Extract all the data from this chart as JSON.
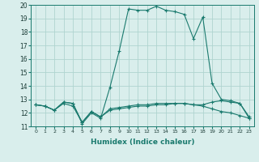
{
  "xlabel": "Humidex (Indice chaleur)",
  "x_values": [
    0,
    1,
    2,
    3,
    4,
    5,
    6,
    7,
    8,
    9,
    10,
    11,
    12,
    13,
    14,
    15,
    16,
    17,
    18,
    19,
    20,
    21,
    22,
    23
  ],
  "line1": [
    12.6,
    12.5,
    12.2,
    12.8,
    12.7,
    11.2,
    12.0,
    11.6,
    13.9,
    16.6,
    19.7,
    19.6,
    19.6,
    19.9,
    19.6,
    19.5,
    19.3,
    17.5,
    19.1,
    14.2,
    13.0,
    12.9,
    12.7,
    11.6
  ],
  "line2": [
    12.6,
    12.5,
    12.2,
    12.7,
    12.5,
    11.3,
    12.1,
    11.7,
    12.2,
    12.3,
    12.4,
    12.5,
    12.5,
    12.6,
    12.6,
    12.7,
    12.7,
    12.6,
    12.5,
    12.3,
    12.1,
    12.0,
    11.8,
    11.6
  ],
  "line3": [
    12.6,
    12.5,
    12.2,
    12.8,
    12.7,
    11.3,
    12.1,
    11.7,
    12.3,
    12.4,
    12.5,
    12.6,
    12.6,
    12.7,
    12.7,
    12.7,
    12.7,
    12.6,
    12.6,
    12.8,
    12.9,
    12.8,
    12.7,
    11.7
  ],
  "line_color": "#1a7a6e",
  "bg_color": "#d9eeec",
  "grid_color": "#b0d4d0",
  "ylim": [
    11,
    20
  ],
  "xlim": [
    -0.5,
    23.5
  ],
  "yticks": [
    11,
    12,
    13,
    14,
    15,
    16,
    17,
    18,
    19,
    20
  ],
  "xticks": [
    0,
    1,
    2,
    3,
    4,
    5,
    6,
    7,
    8,
    9,
    10,
    11,
    12,
    13,
    14,
    15,
    16,
    17,
    18,
    19,
    20,
    21,
    22,
    23
  ]
}
